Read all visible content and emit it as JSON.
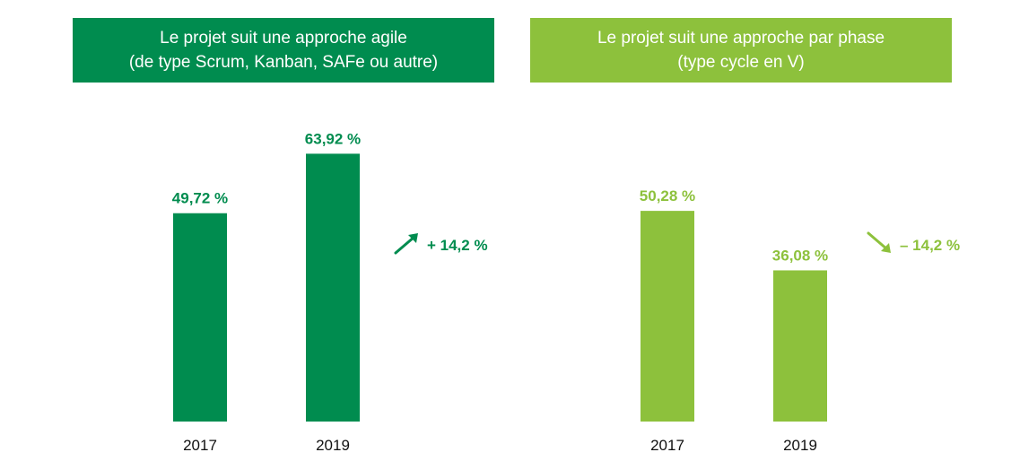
{
  "chart_data": [
    {
      "type": "bar",
      "title_lines": [
        "Le projet suit une approche agile",
        "(de type Scrum, Kanban, SAFe ou autre)"
      ],
      "categories": [
        "2017",
        "2019"
      ],
      "values": [
        49.72,
        63.92
      ],
      "value_labels": [
        "49,72 %",
        "63,92 %"
      ],
      "unit": "%",
      "ylim": [
        0,
        70
      ],
      "change_label": "+ 14,2 %",
      "change_direction": "up",
      "color": "#008c4f",
      "grid": false
    },
    {
      "type": "bar",
      "title_lines": [
        "Le projet suit une approche par phase",
        "(type cycle en V)"
      ],
      "categories": [
        "2017",
        "2019"
      ],
      "values": [
        50.28,
        36.08
      ],
      "value_labels": [
        "50,28 %",
        "36,08 %"
      ],
      "unit": "%",
      "ylim": [
        0,
        70
      ],
      "change_label": "– 14,2 %",
      "change_direction": "down",
      "color": "#8dc13c",
      "grid": false
    }
  ]
}
